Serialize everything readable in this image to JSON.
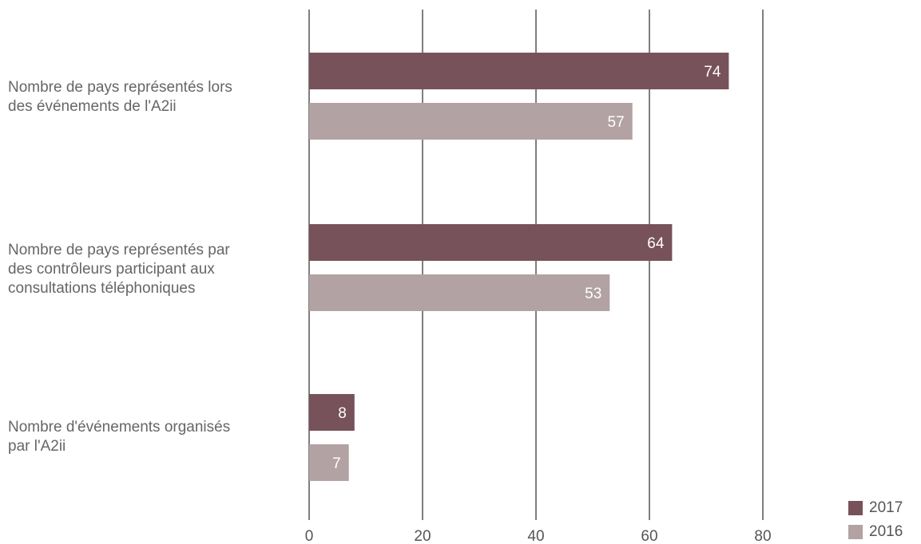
{
  "chart_data": {
    "type": "bar",
    "orientation": "horizontal",
    "title": "",
    "xlabel": "",
    "ylabel": "",
    "xlim": [
      0,
      80
    ],
    "xticks": [
      0,
      20,
      40,
      60,
      80
    ],
    "grid": true,
    "legend_position": "bottom-right",
    "categories": [
      "Nombre de pays représentés lors\ndes événements de l'A2ii",
      "Nombre de pays représentés par\ndes contrôleurs participant aux\nconsultations téléphoniques",
      "Nombre d'événements organisés\npar l'A2ii"
    ],
    "series": [
      {
        "name": "2017",
        "color": "#77525A",
        "values": [
          74,
          64,
          8
        ]
      },
      {
        "name": "2016",
        "color": "#B3A2A3",
        "values": [
          57,
          53,
          7
        ]
      }
    ]
  }
}
